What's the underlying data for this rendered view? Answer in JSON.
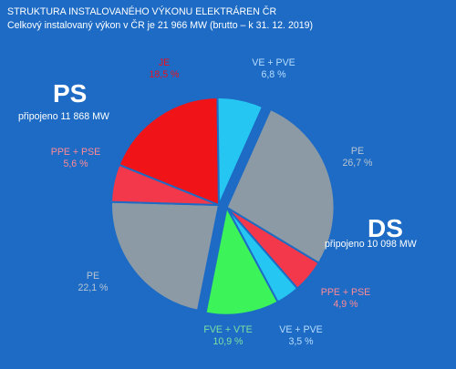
{
  "header": {
    "title": "STRUKTURA INSTALOVANÉHO VÝKONU ELEKTRÁREN ČR",
    "subtitle": "Celkový instalovaný výkon v ČR je 21 966 MW (brutto – k 31. 12. 2019)"
  },
  "ps": {
    "title": "PS",
    "connected": "připojeno 11 868 MW"
  },
  "ds": {
    "title": "DS",
    "connected": "připojeno 10 098 MW"
  },
  "colors": {
    "background": "#1d6bc4",
    "JE": "#f01318",
    "VE+PVE": "#25c6f2",
    "PPE+PSE": "#f2384a",
    "PE": "#8c9aa6",
    "FVE+VTE": "#3df35a"
  },
  "chart_data": {
    "type": "pie",
    "title": "STRUKTURA INSTALOVANÉHO VÝKONU ELEKTRÁREN ČR",
    "unit": "%",
    "groups": [
      {
        "name": "PS",
        "total_mw": 11868,
        "slices": [
          {
            "name": "JE",
            "value": 18.5,
            "label": "18,5 %"
          },
          {
            "name": "VE + PVE",
            "value": 6.8,
            "label": "6,8 %"
          },
          {
            "name": "PE",
            "value": 22.1,
            "label": "22,1 %"
          },
          {
            "name": "PPE + PSE",
            "value": 5.6,
            "label": "5,6 %"
          }
        ]
      },
      {
        "name": "DS",
        "total_mw": 10098,
        "slices": [
          {
            "name": "PE",
            "value": 26.7,
            "label": "26,7 %"
          },
          {
            "name": "PPE + PSE",
            "value": 4.9,
            "label": "4,9 %"
          },
          {
            "name": "VE + PVE",
            "value": 3.5,
            "label": "3,5 %"
          },
          {
            "name": "FVE + VTE",
            "value": 10.9,
            "label": "10,9 %"
          }
        ]
      }
    ]
  }
}
